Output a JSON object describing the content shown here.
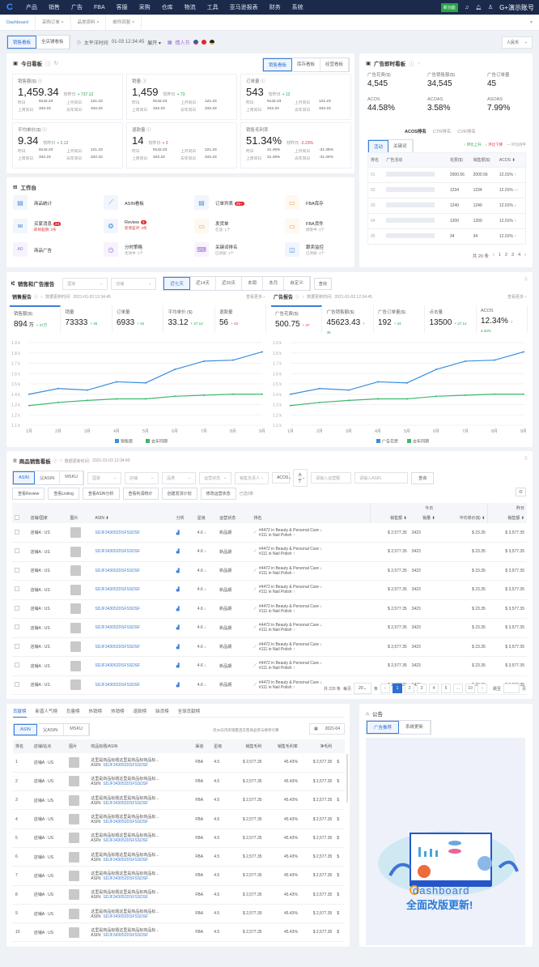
{
  "nav": {
    "logo": "C",
    "items": [
      "产品",
      "销售",
      "广告",
      "FBA",
      "客服",
      "采购",
      "仓库",
      "物流",
      "工具",
      "亚马逊报表",
      "财务",
      "系统"
    ],
    "badge": "新功能",
    "account": "G+演示账号"
  },
  "tabs": [
    {
      "label": "Dashboard",
      "active": true
    },
    {
      "label": "采购订单 ×"
    },
    {
      "label": "品类资料 ×"
    },
    {
      "label": "邮件回复 ×"
    }
  ],
  "toolbar": {
    "views": [
      "销售看板",
      "全店铺看板"
    ],
    "time_label": "太平洋时间",
    "time": "01-03  12:34:45",
    "expand": "展开 ▾",
    "holiday": "情人节",
    "currency": "人民币"
  },
  "today": {
    "title": "今日看板",
    "tabs": [
      "销售看板",
      "库存看板",
      "经营看板"
    ],
    "cards": [
      {
        "label": "销售额($) ⓘ",
        "value": "1,459.34",
        "cmp_label": "较昨日",
        "cmp": "+ 737.12",
        "dir": "up",
        "stats": [
          "昨日",
          "9142.23",
          "上月同日",
          "121.23",
          "上周同日",
          "342.23",
          "去年同日",
          "342.23"
        ]
      },
      {
        "label": "销量 ⓘ",
        "value": "1,459",
        "cmp_label": "较昨日",
        "cmp": "+ 73",
        "dir": "up",
        "stats": [
          "昨日",
          "9142.23",
          "上月同日",
          "121.23",
          "上周同日",
          "342.23",
          "去年同日",
          "342.23"
        ]
      },
      {
        "label": "订单量 ⓘ",
        "value": "543",
        "cmp_label": "较昨日",
        "cmp": "+ 12",
        "dir": "up",
        "stats": [
          "昨日",
          "9142.23",
          "上月同日",
          "121.23",
          "上周同日",
          "342.23",
          "去年同日",
          "342.23"
        ]
      },
      {
        "label": "平均单价($) ⓘ",
        "value": "9.34",
        "cmp_label": "较昨日",
        "cmp": "+ 2.12",
        "dir": "up",
        "stats": [
          "昨日",
          "9142.23",
          "上月同日",
          "121.23",
          "上周同日",
          "342.23",
          "去年同日",
          "342.23"
        ]
      },
      {
        "label": "退款量 ⓘ",
        "value": "14",
        "cmp_label": "较昨日",
        "cmp": "+ 3",
        "dir": "down",
        "stats": [
          "昨日",
          "9142.23",
          "上月同日",
          "121.23",
          "上周同日",
          "342.23",
          "去年同日",
          "342.23"
        ]
      },
      {
        "label": "销售毛利率",
        "value": "51.34%",
        "cmp_label": "较昨日",
        "cmp": "-2.23%",
        "dir": "down",
        "stats": [
          "昨日",
          "21.45%",
          "上月同日",
          "-21.45%",
          "上周同日",
          "21.45%",
          "去年同日",
          "-41.34%"
        ]
      }
    ]
  },
  "ad_live": {
    "title": "广告即时看板",
    "metrics": [
      {
        "label": "广告花费($)",
        "value": "4,545"
      },
      {
        "label": "广告销售额($)",
        "value": "34,545"
      },
      {
        "label": "广告订单量",
        "value": "45"
      },
      {
        "label": "ACOS",
        "value": "44.58%"
      },
      {
        "label": "ACOAS",
        "value": "3.58%"
      },
      {
        "label": "ASOAS",
        "value": "7.99%"
      }
    ],
    "rank_tabs": [
      "ACOS排名",
      "CTR排名",
      "CVR排名"
    ],
    "type_tabs": [
      "活动",
      "关键词"
    ],
    "legend": [
      "↑ 环比上升",
      "↓ 环比下降",
      "— 环比持平"
    ],
    "columns": [
      "排名",
      "广告活动",
      "花费($)",
      "销售额($)",
      "ACOS ⬍"
    ],
    "rows": [
      {
        "rank": "01",
        "spend": "2000.56",
        "sales": "2000.56",
        "acos": "12.01%",
        "trend": "up"
      },
      {
        "rank": "02",
        "spend": "1234",
        "sales": "1234",
        "acos": "12.01%",
        "trend": "flat"
      },
      {
        "rank": "03",
        "spend": "1240",
        "sales": "1240",
        "acos": "12.01%",
        "trend": "down"
      },
      {
        "rank": "04",
        "spend": "1200",
        "sales": "1200",
        "acos": "12.01%",
        "trend": "up"
      },
      {
        "rank": "05",
        "spend": "34",
        "sales": "34",
        "acos": "12.01%",
        "trend": "up"
      }
    ],
    "pager": {
      "total": "共 20 条",
      "pages": [
        "‹",
        "1",
        "2",
        "3",
        "4",
        "›"
      ]
    }
  },
  "workbench": {
    "title": "工作台",
    "items": [
      {
        "label": "商品统计",
        "icon": "product-stats-icon",
        "glyph": "▤",
        "color": "#4a90e2"
      },
      {
        "label": "ASIN看板",
        "icon": "asin-chart-icon",
        "glyph": "⟋",
        "color": "#4a90e2"
      },
      {
        "label": "订单列表",
        "badge": "99+",
        "icon": "order-list-icon",
        "glyph": "▤",
        "color": "#4a90e2"
      },
      {
        "label": "FBA库存",
        "icon": "fba-inventory-icon",
        "glyph": "▭",
        "color": "#f0a04b"
      },
      {
        "label": "买家消息",
        "badge": "23",
        "sub": "即将超期: 2条",
        "sub_red": true,
        "icon": "mail-icon",
        "glyph": "✉",
        "color": "#4a90e2"
      },
      {
        "label": "Review",
        "badge": "8",
        "sub": "新增差评: 3条",
        "sub_red": true,
        "icon": "review-icon",
        "glyph": "❂",
        "color": "#4a90e2"
      },
      {
        "label": "发货单",
        "sub": "在途: 1个",
        "icon": "shipment-icon",
        "glyph": "▭",
        "color": "#f0a04b"
      },
      {
        "label": "FBA货件",
        "sub": "接受中: 1个",
        "icon": "fba-shipment-icon",
        "glyph": "▭",
        "color": "#f0a04b"
      },
      {
        "label": "商品广告",
        "icon": "ad-icon",
        "glyph": "AD",
        "color": "#9b6bd8"
      },
      {
        "label": "分时策略",
        "sub": "生效中: 1个",
        "icon": "schedule-icon",
        "glyph": "◷",
        "color": "#9b6bd8"
      },
      {
        "label": "关键词排名",
        "sub": "已添加: 1个",
        "icon": "keyword-icon",
        "glyph": "⌨",
        "color": "#9b6bd8"
      },
      {
        "label": "跟卖监控",
        "sub": "已添加: 1个",
        "icon": "monitor-icon",
        "glyph": "◫",
        "color": "#4a90e2"
      }
    ]
  },
  "report": {
    "title": "销售和广告报告",
    "filters": [
      "国家",
      "店铺"
    ],
    "ranges": [
      "近七天",
      "近14天",
      "近30天",
      "本周",
      "本月",
      "自定义"
    ],
    "query": "查询",
    "sales": {
      "title": "销售报告",
      "update_label": "数据更新时间:",
      "update_time": "2021-01-03  12:34:45",
      "more": "查看更多 ›",
      "kpis": [
        {
          "label": "销售额($)",
          "value": "894",
          "unit": "万",
          "delta": "+ 37万",
          "dir": "up"
        },
        {
          "label": "销量",
          "value": "73333",
          "delta": "+ 45",
          "dir": "up"
        },
        {
          "label": "订单量",
          "value": "6933",
          "delta": "+ 34",
          "dir": "up"
        },
        {
          "label": "平均单价 ($)",
          "value": "33.12",
          "delta": "+ 27.12",
          "dir": "up"
        },
        {
          "label": "退款量",
          "value": "56",
          "delta": "+ 43",
          "dir": "down"
        }
      ]
    },
    "ads": {
      "title": "广告报告",
      "update_label": "数据更新时间:",
      "update_time": "2021-01-03  12:34:45",
      "more": "查看更多 ›",
      "kpis": [
        {
          "label": "广告花费($)",
          "value": "500.75",
          "delta": "+ 37",
          "dir": "down"
        },
        {
          "label": "广告销售额($)",
          "value": "45623.43",
          "delta": "+ 45",
          "dir": "up"
        },
        {
          "label": "广告订单量($)",
          "value": "192",
          "delta": "+ 34",
          "dir": "up"
        },
        {
          "label": "点击量",
          "value": "13500",
          "delta": "+ 27.12",
          "dir": "up"
        },
        {
          "label": "ACOS",
          "value": "12.34%",
          "delta": "+ 4.34%",
          "dir": "up"
        }
      ]
    }
  },
  "chart_data": [
    {
      "type": "line",
      "categories": [
        "1月",
        "2月",
        "3月",
        "4月",
        "5月",
        "6月",
        "7月",
        "8月",
        "9月"
      ],
      "y_ticks": [
        "1.1 k",
        "1.2 k",
        "1.3 k",
        "1.4 k",
        "1.5 k",
        "1.6 k",
        "1.7 k",
        "1.8 k",
        "1.9 k"
      ],
      "ylim": [
        1100,
        1900
      ],
      "grid": true,
      "legend": "bottom",
      "series": [
        {
          "name": "销售额",
          "color": "#3a8ee0",
          "values": [
            1400,
            1455,
            1440,
            1520,
            1510,
            1640,
            1720,
            1730,
            1810
          ]
        },
        {
          "name": "去年同期",
          "color": "#3db86a",
          "values": [
            1290,
            1320,
            1340,
            1355,
            1355,
            1380,
            1390,
            1400,
            1400
          ]
        }
      ]
    },
    {
      "type": "line",
      "categories": [
        "1月",
        "2月",
        "3月",
        "4月",
        "5月",
        "6月",
        "7月",
        "8月",
        "9月"
      ],
      "y_ticks": [
        "1.1 k",
        "1.2 k",
        "1.3 k",
        "1.4 k",
        "1.5 k",
        "1.6 k",
        "1.7 k",
        "1.8 k",
        "1.9 k"
      ],
      "ylim": [
        1100,
        1900
      ],
      "grid": true,
      "legend": "bottom",
      "series": [
        {
          "name": "广告花费",
          "color": "#3a8ee0",
          "values": [
            1400,
            1455,
            1440,
            1520,
            1510,
            1640,
            1720,
            1730,
            1810
          ]
        },
        {
          "name": "去年同期",
          "color": "#3db86a",
          "values": [
            1290,
            1320,
            1340,
            1355,
            1355,
            1380,
            1390,
            1400,
            1400
          ]
        }
      ]
    }
  ],
  "products": {
    "title": "商品销售看板",
    "update_label": "数据更新时间:",
    "update_time": "2021-01-03  12:34:45",
    "segments": [
      "ASIN",
      "父ASIN",
      "MSKU"
    ],
    "selects": [
      "国家",
      "店铺",
      "品类",
      "运营状态",
      "销售负责人",
      "ACOS",
      "大于"
    ],
    "inputs": [
      "请输入运营额",
      "请输入ASIN"
    ],
    "query": "查询",
    "actions": [
      "查看Review",
      "查看Listing",
      "查看ASIN分析",
      "查看利润统计",
      "创建发货计划",
      "修改运营状态"
    ],
    "selected": "已选0条",
    "group_today": "今日",
    "group_yesterday": "昨日",
    "columns": [
      "店铺/国家",
      "图片",
      "ASIN ⬍",
      "分析",
      "星级",
      "运营状态",
      "排名",
      "销售额 ⬍",
      "销量 ⬍",
      "平均单价($) ⬍",
      "销售额 ⬍"
    ],
    "rows": [
      {
        "shop": "店铺A : US",
        "asin": "SDJF343052DSFSSDSF",
        "rating": "4.6 ↓",
        "status": "新品期",
        "rank1": "#4472 in Beauty & Personal Care ↓",
        "rank2": "#111 in Nail Polish ↑",
        "sales": "$ 2,577.35",
        "qty": "3423",
        "price": "$ 23.35",
        "y_sales": "$ 3,577.35"
      },
      {
        "shop": "店铺A : US",
        "asin": "SDJF343052DSFSSDSF",
        "rating": "4.6 ↓",
        "status": "新品期",
        "rank1": "#4472 in Beauty & Personal Care ↓",
        "rank2": "#111 in Nail Polish ↑",
        "sales": "$ 2,577.35",
        "qty": "3423",
        "price": "$ 23.35",
        "y_sales": "$ 3,577.35"
      },
      {
        "shop": "店铺A : US",
        "asin": "SDJF343052DSFSSDSF",
        "rating": "4.6 ↓",
        "status": "新品期",
        "rank1": "#4472 in Beauty & Personal Care ↓",
        "rank2": "#111 in Nail Polish ↑",
        "sales": "$ 2,577.35",
        "qty": "3423",
        "price": "$ 23.35",
        "y_sales": "$ 3,577.35"
      },
      {
        "shop": "店铺A : US",
        "asin": "SDJF343052DSFSSDSF",
        "rating": "4.6 ↓",
        "status": "新品期",
        "rank1": "#4472 in Beauty & Personal Care ↓",
        "rank2": "#111 in Nail Polish ↑",
        "sales": "$ 2,577.35",
        "qty": "3423",
        "price": "$ 23.35",
        "y_sales": "$ 3,577.35"
      },
      {
        "shop": "店铺A : US",
        "asin": "SDJF343052DSFSSDSF",
        "rating": "4.6 ↓",
        "status": "新品期",
        "rank1": "#4472 in Beauty & Personal Care ↓",
        "rank2": "#111 in Nail Polish ↑",
        "sales": "$ 2,577.35",
        "qty": "3423",
        "price": "$ 23.35",
        "y_sales": "$ 3,577.35"
      },
      {
        "shop": "店铺A : US",
        "asin": "SDJF343052DSFSSDSF",
        "rating": "4.6 ↓",
        "status": "新品期",
        "rank1": "#4472 in Beauty & Personal Care ↓",
        "rank2": "#111 in Nail Polish ↑",
        "sales": "$ 2,577.35",
        "qty": "3423",
        "price": "$ 23.35",
        "y_sales": "$ 3,577.35"
      },
      {
        "shop": "店铺A : US",
        "asin": "SDJF343052DSFSSDSF",
        "rating": "4.6 ↓",
        "status": "新品期",
        "rank1": "#4472 in Beauty & Personal Care ↓",
        "rank2": "#111 in Nail Polish ↑",
        "sales": "$ 2,577.35",
        "qty": "3423",
        "price": "$ 23.35",
        "y_sales": "$ 3,577.35"
      },
      {
        "shop": "店铺A : US",
        "asin": "SDJF343052DSFSSDSF",
        "rating": "4.6 ↓",
        "status": "新品期",
        "rank1": "#4472 in Beauty & Personal Care ↓",
        "rank2": "#111 in Nail Polish ↑",
        "sales": "$ 2,577.35",
        "qty": "3423",
        "price": "$ 23.35",
        "y_sales": "$ 3,577.35"
      },
      {
        "shop": "店铺A : US",
        "asin": "SDJF343052DSFSSDSF",
        "rating": "4.6 ↓",
        "status": "新品期",
        "rank1": "#4472 in Beauty & Personal Care ↓",
        "rank2": "#111 in Nail Polish ↑",
        "sales": "$ 2,577.35",
        "qty": "3423",
        "price": "$ 23.35",
        "y_sales": "$ 3,577.35"
      }
    ],
    "pager": {
      "total": "共 220 条",
      "per_page_label": "每页",
      "per_page": "20",
      "unit": "条",
      "pages": [
        "‹",
        "1",
        "2",
        "3",
        "4",
        "5",
        "...",
        "10",
        "›"
      ],
      "current": "1",
      "jump_label": "跳至",
      "jump_unit": "页"
    }
  },
  "ranking": {
    "tabs": [
      "贡献榜",
      "新晋人气榜",
      "负量榜",
      "热销榜",
      "热销榜",
      "退款榜",
      "缺货榜",
      "全球贡献榜"
    ],
    "segments": [
      "ASIN",
      "父ASIN",
      "MSKU"
    ],
    "note": "仅30天内有销量且在售商品参与榜单计算",
    "date": "2021-04",
    "columns": [
      "排名",
      "店铺/站点",
      "图片",
      "商品标题/ASIN",
      "渠道",
      "星级",
      "销售毛利",
      "销售毛利率",
      "净毛利"
    ],
    "asin_label": "ASIN:",
    "rows": [
      {
        "rank": "1",
        "shop": "店铺A : US",
        "title": "这里是商品标题这里是商品标商品标...",
        "asin": "SDJF343052DSFSSDSF",
        "channel": "FBA",
        "rating": "4.5",
        "profit": "$ 2,577.35",
        "margin": "45.43%",
        "net": "$ 2,577.35",
        "extra": "$"
      },
      {
        "rank": "2",
        "shop": "店铺A : US",
        "title": "这里是商品标题这里是商品标商品标...",
        "asin": "SDJF343052DSFSSDSF",
        "channel": "FBA",
        "rating": "4.5",
        "profit": "$ 2,577.35",
        "margin": "45.43%",
        "net": "$ 2,577.35",
        "extra": "$"
      },
      {
        "rank": "3",
        "shop": "店铺A : US",
        "title": "这里是商品标题这里是商品标商品标...",
        "asin": "SDJF343052DSFSSDSF",
        "channel": "FBA",
        "rating": "4.5",
        "profit": "$ 2,577.35",
        "margin": "45.43%",
        "net": "$ 2,577.35",
        "extra": "$"
      },
      {
        "rank": "4",
        "shop": "店铺A : US",
        "title": "这里是商品标题这里是商品标商品标...",
        "asin": "SDJF343052DSFSSDSF",
        "channel": "FBA",
        "rating": "4.5",
        "profit": "$ 2,577.35",
        "margin": "45.43%",
        "net": "$ 2,577.35",
        "extra": "$"
      },
      {
        "rank": "5",
        "shop": "店铺A : US",
        "title": "这里是商品标题这里是商品标商品标...",
        "asin": "SDJF343052DSFSSDSF",
        "channel": "FBA",
        "rating": "4.5",
        "profit": "$ 2,577.35",
        "margin": "45.43%",
        "net": "$ 2,577.35",
        "extra": "$"
      },
      {
        "rank": "6",
        "shop": "店铺A : US",
        "title": "这里是商品标题这里是商品标商品标...",
        "asin": "SDJF343052DSFSSDSF",
        "channel": "FBA",
        "rating": "4.5",
        "profit": "$ 2,577.35",
        "margin": "45.43%",
        "net": "$ 2,577.35",
        "extra": "$"
      },
      {
        "rank": "7",
        "shop": "店铺A : US",
        "title": "这里是商品标题这里是商品标商品标...",
        "asin": "SDJF343052DSFSSDSF",
        "channel": "FBA",
        "rating": "4.5",
        "profit": "$ 2,577.35",
        "margin": "45.43%",
        "net": "$ 2,577.35",
        "extra": "$"
      },
      {
        "rank": "8",
        "shop": "店铺A : US",
        "title": "这里是商品标题这里是商品标商品标...",
        "asin": "SDJF343052DSFSSDSF",
        "channel": "FBA",
        "rating": "4.5",
        "profit": "$ 2,577.35",
        "margin": "45.43%",
        "net": "$ 2,577.35",
        "extra": "$"
      },
      {
        "rank": "9",
        "shop": "店铺A : US",
        "title": "这里是商品标题这里是商品标商品标...",
        "asin": "SDJF343052DSFSSDSF",
        "channel": "FBA",
        "rating": "4.5",
        "profit": "$ 2,577.35",
        "margin": "45.43%",
        "net": "$ 2,577.35",
        "extra": "$"
      },
      {
        "rank": "10",
        "shop": "店铺A : US",
        "title": "这里是商品标题这里是商品标商品标...",
        "asin": "SDJF343052DSFSSDSF",
        "channel": "FBA",
        "rating": "4.5",
        "profit": "$ 2,577.35",
        "margin": "45.43%",
        "net": "$ 2,577.35",
        "extra": "$"
      }
    ]
  },
  "notice": {
    "title": "公告",
    "tabs": [
      "广告推荐",
      "系统更新"
    ],
    "banner_logo": "dashboard",
    "banner_text": "全面改版更新!"
  }
}
